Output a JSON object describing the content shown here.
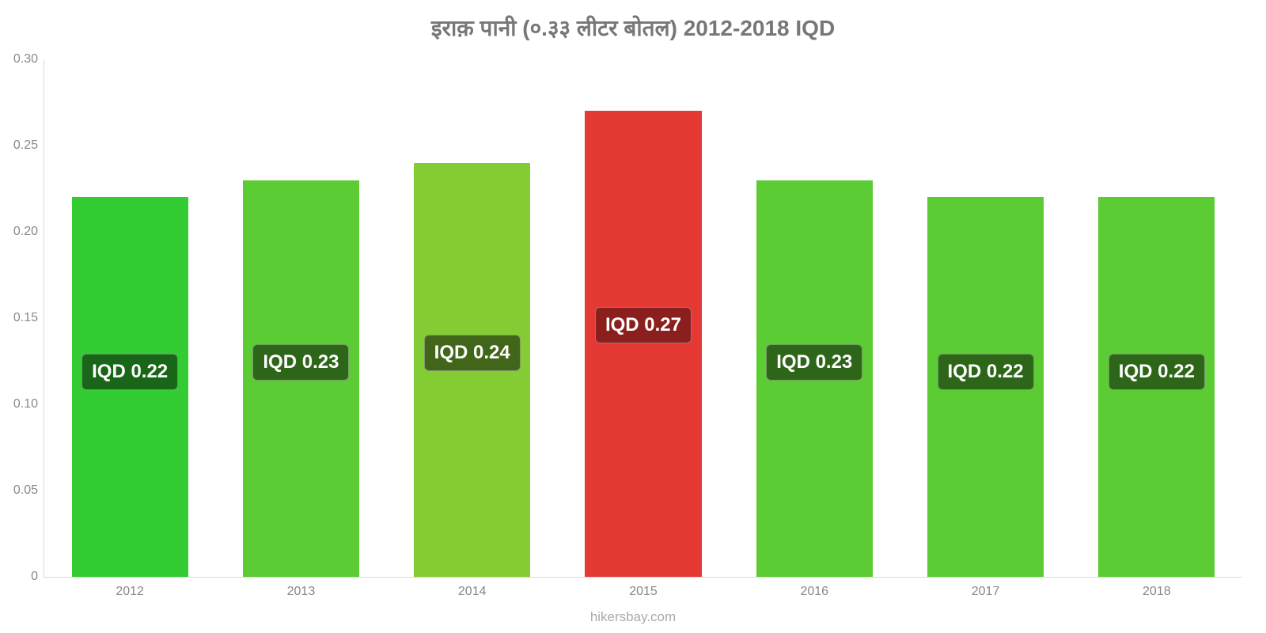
{
  "chart": {
    "type": "bar",
    "title": "इराक़ पानी (०.३३ लीटर बोतल) 2012-2018 IQD",
    "title_fontsize": 28,
    "title_color": "#777777",
    "background_color": "#ffffff",
    "axis_color": "#d8d8d8",
    "tick_label_color": "#888888",
    "y": {
      "min": 0,
      "max": 0.3,
      "ticks": [
        {
          "v": 0,
          "label": "0"
        },
        {
          "v": 0.05,
          "label": "0.05"
        },
        {
          "v": 0.1,
          "label": "0.10"
        },
        {
          "v": 0.15,
          "label": "0.15"
        },
        {
          "v": 0.2,
          "label": "0.20"
        },
        {
          "v": 0.25,
          "label": "0.25"
        },
        {
          "v": 0.3,
          "label": "0.30"
        }
      ],
      "tick_fontsize": 16
    },
    "x": {
      "categories": [
        "2012",
        "2013",
        "2014",
        "2015",
        "2016",
        "2017",
        "2018"
      ],
      "tick_fontsize": 16
    },
    "bar_width_ratio": 0.68,
    "bars": [
      {
        "value": 0.22,
        "label": "IQD 0.22",
        "fill": "#33cc33",
        "label_bg": "#196619"
      },
      {
        "value": 0.23,
        "label": "IQD 0.23",
        "fill": "#5bcc33",
        "label_bg": "#2e6619"
      },
      {
        "value": 0.24,
        "label": "IQD 0.24",
        "fill": "#84cc33",
        "label_bg": "#426619"
      },
      {
        "value": 0.27,
        "label": "IQD 0.27",
        "fill": "#e53935",
        "label_bg": "#8b1f1d"
      },
      {
        "value": 0.23,
        "label": "IQD 0.23",
        "fill": "#5bcc33",
        "label_bg": "#2e6619"
      },
      {
        "value": 0.22,
        "label": "IQD 0.22",
        "fill": "#5bcc33",
        "label_bg": "#2e6619"
      },
      {
        "value": 0.22,
        "label": "IQD 0.22",
        "fill": "#5bcc33",
        "label_bg": "#2e6619"
      }
    ],
    "label_text_color": "#ffffff",
    "label_fontsize": 24,
    "footer": "hikersbay.com",
    "footer_fontsize": 17,
    "footer_color": "#aaaaaa"
  }
}
